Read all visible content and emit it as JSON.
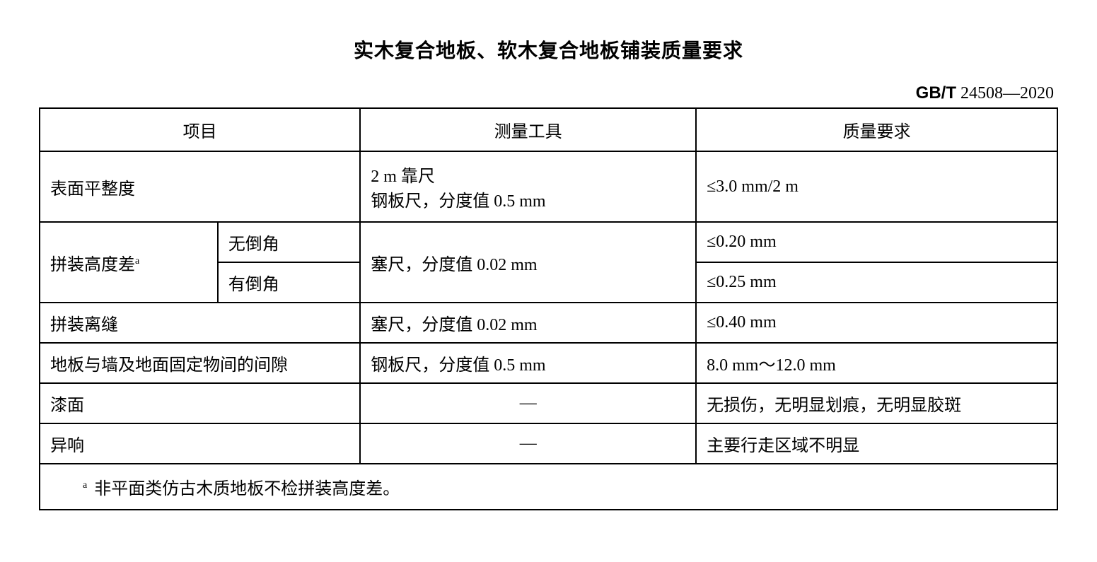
{
  "title": "实木复合地板、软木复合地板铺装质量要求",
  "standard_prefix": "GB/T",
  "standard_number": " 24508—2020",
  "headers": {
    "item": "项目",
    "tool": "测量工具",
    "req": "质量要求"
  },
  "rows": {
    "flat": {
      "item": "表面平整度",
      "tool_line1": "2 m 靠尺",
      "tool_line2": "钢板尺，分度值 0.5 mm",
      "req": "≤3.0 mm/2 m"
    },
    "height": {
      "item": "拼装高度差",
      "sup": "a",
      "sub_no": "无倒角",
      "sub_yes": "有倒角",
      "tool": "塞尺，分度值 0.02 mm",
      "req_no": "≤0.20 mm",
      "req_yes": "≤0.25 mm"
    },
    "gap": {
      "item": "拼装离缝",
      "tool": "塞尺，分度值 0.02 mm",
      "req": "≤0.40 mm"
    },
    "wall": {
      "item": "地板与墙及地面固定物间的间隙",
      "tool": "钢板尺，分度值 0.5 mm",
      "req": "8.0 mm～12.0 mm"
    },
    "paint": {
      "item": "漆面",
      "tool": "—",
      "req": "无损伤，无明显划痕，无明显胶斑"
    },
    "noise": {
      "item": "异响",
      "tool": "—",
      "req": "主要行走区域不明显"
    }
  },
  "footnote": {
    "mark": "a",
    "text": "非平面类仿古木质地板不检拼装高度差。"
  },
  "style": {
    "border_color": "#000000",
    "background": "#ffffff",
    "title_fontsize": 28,
    "body_fontsize": 24
  }
}
